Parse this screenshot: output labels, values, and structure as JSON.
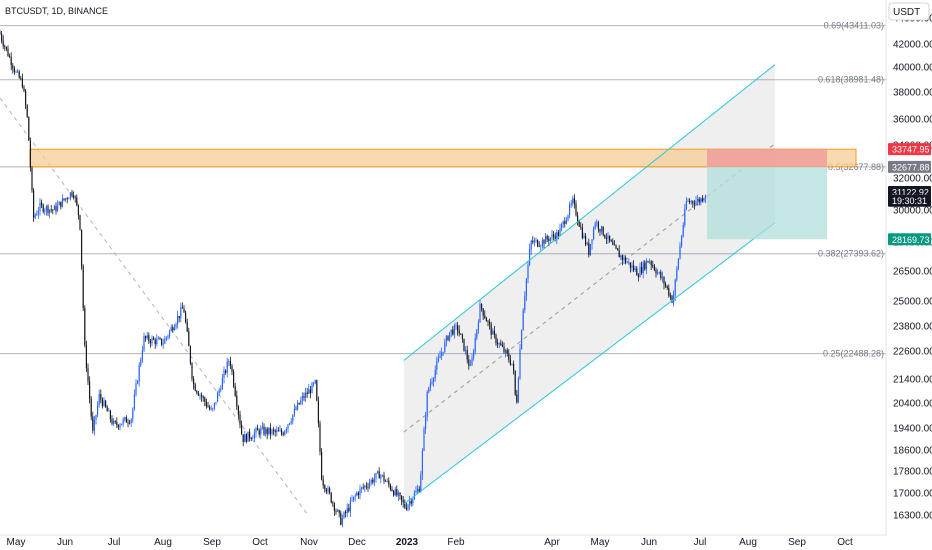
{
  "header": {
    "symbol_line": "BTCUSDT, 1D, BINANCE",
    "currency": "USDT"
  },
  "colors": {
    "up": "#2962ff",
    "down": "#131722",
    "channel": "#26c6da",
    "grid": "#cfd2d8",
    "zone_fill": "#f7cc96",
    "zone_stroke": "#f59b1f",
    "stop": "#ef9a9a",
    "target": "#b2dfdb",
    "badge_red": "#f23645",
    "badge_gray": "#787b86",
    "badge_dark": "#131722",
    "badge_teal": "#089981"
  },
  "chart_data": {
    "type": "candlestick",
    "symbol": "BTCUSDT",
    "interval": "1D",
    "exchange": "BINANCE",
    "y_ticks": [
      44000,
      42000,
      40000,
      38000,
      36000,
      34000,
      32000,
      30000,
      28000,
      26500,
      25000,
      23800,
      22600,
      21400,
      20400,
      19400,
      18600,
      17800,
      17000,
      16300
    ],
    "y_tick_labels": [
      "44000.00",
      "42000.00",
      "40000.00",
      "38000.00",
      "36000.00",
      "34000.00",
      "32000.00",
      "30000.00",
      "28000.00",
      "26500.00",
      "25000.00",
      "23800.00",
      "22600.00",
      "21400.00",
      "20400.00",
      "19400.00",
      "18600.00",
      "17800.00",
      "17000.00",
      "16300.00"
    ],
    "x_labels": [
      "May",
      "Jun",
      "Jul",
      "Aug",
      "Sep",
      "Oct",
      "Nov",
      "Dec",
      "2023",
      "Feb",
      "Apr",
      "May",
      "Jun",
      "Jul",
      "Aug",
      "Sep",
      "Oct"
    ],
    "x_label_dates": [
      "2022-05",
      "2022-06",
      "2022-07",
      "2022-08",
      "2022-09",
      "2022-10",
      "2022-11",
      "2022-12",
      "2023-01",
      "2023-02",
      "2023-04",
      "2023-05",
      "2023-06",
      "2023-07",
      "2023-08",
      "2023-09",
      "2023-10"
    ],
    "fib_levels": [
      {
        "ratio": 0.69,
        "price": 43411.03,
        "label": "0.69(43411.03)"
      },
      {
        "ratio": 0.618,
        "price": 38981.48,
        "label": "0.618(38981.48)"
      },
      {
        "ratio": 0.5,
        "price": 32677.88,
        "label": "0.5(32677.88)"
      },
      {
        "ratio": 0.382,
        "price": 27393.62,
        "label": "0.382(27393.62)"
      },
      {
        "ratio": 0.25,
        "price": 22488.28,
        "label": "0.25(22488.28)"
      }
    ],
    "resistance_zone": {
      "low": 32677.88,
      "high": 33747.95
    },
    "position_tool": {
      "entry": 32677.88,
      "stop": 33747.95,
      "target": 28169.73
    },
    "price_badges": [
      {
        "label": "33747.95",
        "price": 33747.95,
        "kind": "red"
      },
      {
        "label": "32677.88",
        "price": 32677.88,
        "kind": "gray"
      },
      {
        "label": "31122.92",
        "price": 31122.92,
        "kind": "dark"
      },
      {
        "label": "19:30:31",
        "price": 30580,
        "kind": "dark"
      },
      {
        "label": "28169.73",
        "price": 28169.73,
        "kind": "teal"
      }
    ],
    "channel": {
      "upper": [
        {
          "date": "2022-12-30",
          "price": 22200
        },
        {
          "date": "2023-08-18",
          "price": 40200
        }
      ],
      "lower": [
        {
          "date": "2022-12-30",
          "price": 16650
        },
        {
          "date": "2023-08-18",
          "price": 29200
        }
      ]
    },
    "path": [
      [
        "2022-04-26",
        42800
      ],
      [
        "2022-05-01",
        39500
      ],
      [
        "2022-05-05",
        38700
      ],
      [
        "2022-05-08",
        36200
      ],
      [
        "2022-05-12",
        29500
      ],
      [
        "2022-05-16",
        30200
      ],
      [
        "2022-05-25",
        30000
      ],
      [
        "2022-05-31",
        30600
      ],
      [
        "2022-06-06",
        31200
      ],
      [
        "2022-06-10",
        29400
      ],
      [
        "2022-06-13",
        22800
      ],
      [
        "2022-06-18",
        19200
      ],
      [
        "2022-06-22",
        20700
      ],
      [
        "2022-07-01",
        19500
      ],
      [
        "2022-07-12",
        19800
      ],
      [
        "2022-07-20",
        23200
      ],
      [
        "2022-08-01",
        23000
      ],
      [
        "2022-08-14",
        24700
      ],
      [
        "2022-08-20",
        21200
      ],
      [
        "2022-09-01",
        20000
      ],
      [
        "2022-09-12",
        22300
      ],
      [
        "2022-09-20",
        19000
      ],
      [
        "2022-10-01",
        19300
      ],
      [
        "2022-10-15",
        19200
      ],
      [
        "2022-10-28",
        20600
      ],
      [
        "2022-11-05",
        21200
      ],
      [
        "2022-11-09",
        17500
      ],
      [
        "2022-11-21",
        16100
      ],
      [
        "2022-12-01",
        17000
      ],
      [
        "2022-12-15",
        17700
      ],
      [
        "2022-12-31",
        16550
      ],
      [
        "2023-01-09",
        17200
      ],
      [
        "2023-01-14",
        20900
      ],
      [
        "2023-01-28",
        23500
      ],
      [
        "2023-02-02",
        23700
      ],
      [
        "2023-02-10",
        21800
      ],
      [
        "2023-02-16",
        24800
      ],
      [
        "2023-02-24",
        23300
      ],
      [
        "2023-03-08",
        22000
      ],
      [
        "2023-03-10",
        20150
      ],
      [
        "2023-03-14",
        24500
      ],
      [
        "2023-03-19",
        28000
      ],
      [
        "2023-03-25",
        28000
      ],
      [
        "2023-04-05",
        28500
      ],
      [
        "2023-04-14",
        30500
      ],
      [
        "2023-04-20",
        28500
      ],
      [
        "2023-04-24",
        27500
      ],
      [
        "2023-04-28",
        29300
      ],
      [
        "2023-05-10",
        27600
      ],
      [
        "2023-05-25",
        26400
      ],
      [
        "2023-06-01",
        27100
      ],
      [
        "2023-06-10",
        25900
      ],
      [
        "2023-06-15",
        25000
      ],
      [
        "2023-06-20",
        28300
      ],
      [
        "2023-06-23",
        30500
      ],
      [
        "2023-07-01",
        30600
      ],
      [
        "2023-07-05",
        31122.92
      ]
    ]
  }
}
